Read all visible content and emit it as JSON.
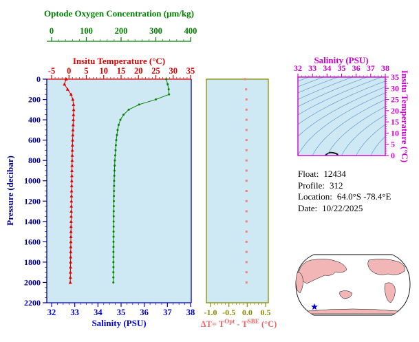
{
  "colors": {
    "panel_bg": "#cfe9f4",
    "oxygen": "#008000",
    "temperature": "#dd0000",
    "salinity": "#0000cc",
    "pressure": "#00008b",
    "delta_frame": "#8b8b00",
    "delta_marker": "#f08080",
    "delta_label": "#ee6666",
    "ts": "#cc00cc",
    "contour": "#5588cc",
    "scatter": "#1a1a1a",
    "map_land": "#f3b6b6",
    "map_marker": "#0000cc",
    "info_text": "#000000"
  },
  "main_panel": {
    "oxygen_axis": {
      "title": "Optode Oxygen Concentration (μm/kg)",
      "ticks": [
        "0",
        "100",
        "200",
        "300",
        "400"
      ],
      "min": 0,
      "max": 400
    },
    "temperature_axis": {
      "title": "Insitu Temperature (°C)",
      "ticks": [
        "-5",
        "0",
        "5",
        "10",
        "15",
        "20",
        "25",
        "30",
        "35"
      ],
      "min": -5,
      "max": 35
    },
    "salinity_axis": {
      "title": "Salinity (PSU)",
      "ticks": [
        "32",
        "33",
        "34",
        "35",
        "36",
        "37",
        "38"
      ],
      "min": 32,
      "max": 38
    },
    "pressure_axis": {
      "title": "Pressure (decibar)",
      "ticks": [
        "0",
        "200",
        "400",
        "600",
        "800",
        "1000",
        "1200",
        "1400",
        "1600",
        "1800",
        "2000",
        "2200"
      ],
      "min": 0,
      "max": 2200
    }
  },
  "delta_panel": {
    "xaxis": {
      "title_plain": "ΔT= T^Opt - T^SBE (°C)",
      "title_parts": {
        "p1": "ΔT= T",
        "sup1": "Opt",
        "p2": " - T",
        "sup2": "SBE",
        "p3": " (°C)"
      },
      "ticks": [
        "-1.0",
        "-0.5",
        "0.0",
        "0.5"
      ],
      "min": -1.0,
      "max": 0.5
    }
  },
  "ts_panel": {
    "salinity_axis": {
      "title": "Salinity (PSU)",
      "ticks": [
        "32",
        "33",
        "34",
        "35",
        "36",
        "37",
        "38"
      ],
      "min": 32,
      "max": 38
    },
    "temperature_axis": {
      "title": "Insitu Temperature (°C)",
      "ticks": [
        "0",
        "5",
        "10",
        "15",
        "20",
        "25",
        "30",
        "35"
      ],
      "min": 0,
      "max": 35
    }
  },
  "info": {
    "lines": [
      {
        "label": "Float:",
        "value": "12434"
      },
      {
        "label": "Profile:",
        "value": "312"
      },
      {
        "label": "Location:",
        "value": "64.0°S  -78.4°E"
      },
      {
        "label": "Date:",
        "value": "10/22/2025"
      }
    ]
  },
  "chart_data": [
    {
      "type": "line",
      "title": "Pressure profiles of insitu temperature and optode oxygen",
      "ylabel": "Pressure (decibar)",
      "ylim": [
        0,
        2200
      ],
      "grid": false,
      "y_pressure": [
        0,
        50,
        100,
        150,
        200,
        250,
        300,
        350,
        400,
        450,
        500,
        550,
        600,
        650,
        700,
        750,
        800,
        850,
        900,
        950,
        1000,
        1050,
        1100,
        1150,
        1200,
        1250,
        1300,
        1350,
        1400,
        1450,
        1500,
        1550,
        1600,
        1650,
        1700,
        1750,
        1800,
        1850,
        1900,
        1950,
        2000
      ],
      "series": [
        {
          "name": "Insitu Temperature (°C)",
          "axis": "temperature",
          "xlim": [
            -5,
            35
          ],
          "marker": "triangle",
          "values": [
            -0.8,
            -1.3,
            -0.4,
            0.6,
            1.1,
            1.3,
            1.35,
            1.3,
            1.25,
            1.2,
            1.15,
            1.1,
            1.05,
            1.0,
            0.97,
            0.94,
            0.91,
            0.88,
            0.85,
            0.83,
            0.8,
            0.78,
            0.75,
            0.73,
            0.7,
            0.68,
            0.66,
            0.64,
            0.62,
            0.6,
            0.58,
            0.56,
            0.54,
            0.52,
            0.5,
            0.48,
            0.46,
            0.44,
            0.42,
            0.4,
            0.38
          ]
        },
        {
          "name": "Optode Oxygen Concentration (μm/kg)",
          "axis": "oxygen",
          "xlim": [
            0,
            400
          ],
          "marker": "circle",
          "values": [
            330,
            334,
            337,
            338,
            300,
            252,
            222,
            207,
            198,
            193,
            190,
            188,
            186,
            185,
            184,
            183,
            182,
            181.5,
            181,
            180.5,
            180,
            179.8,
            179.6,
            179.4,
            179.2,
            179,
            178.8,
            178.7,
            178.6,
            178.5,
            178.4,
            178.3,
            178.2,
            178.1,
            178,
            178,
            177.9,
            177.9,
            177.8,
            177.8,
            177.7
          ]
        }
      ]
    },
    {
      "type": "scatter",
      "title": "ΔT = T^Opt - T^SBE (°C) vs pressure",
      "xlim": [
        -1.0,
        0.5
      ],
      "ylim": [
        0,
        2200
      ],
      "pressure": [
        0,
        100,
        200,
        300,
        400,
        500,
        600,
        700,
        800,
        900,
        1000,
        1100,
        1200,
        1300,
        1400,
        1500,
        1600,
        1700,
        1800,
        1900,
        2000
      ],
      "values": [
        -0.06,
        -0.03,
        -0.02,
        -0.02,
        -0.02,
        -0.02,
        -0.02,
        -0.02,
        -0.02,
        -0.02,
        -0.02,
        -0.02,
        -0.02,
        -0.02,
        -0.02,
        -0.02,
        -0.02,
        -0.02,
        -0.02,
        -0.02,
        -0.02
      ]
    },
    {
      "type": "scatter",
      "title": "T-S diagram with isopycnal contours",
      "xlabel": "Salinity (PSU)",
      "xlim": [
        32,
        38
      ],
      "ylabel": "Insitu Temperature (°C)",
      "ylim": [
        0,
        35
      ],
      "isopycnal_contours": true,
      "contour_levels_from": -6.4,
      "contour_levels_to": 4.8,
      "contour_step": 0.8,
      "salinity": [
        33.9,
        33.92,
        33.96,
        34.05,
        34.15,
        34.22,
        34.3,
        34.38,
        34.45,
        34.5,
        34.55,
        34.6,
        34.64,
        34.67,
        34.7,
        34.71,
        34.72
      ],
      "temperature": [
        0.1,
        0.2,
        0.5,
        0.9,
        1.2,
        1.32,
        1.3,
        1.25,
        1.18,
        1.1,
        1.0,
        0.9,
        0.8,
        0.7,
        0.6,
        0.5,
        0.4
      ]
    }
  ]
}
